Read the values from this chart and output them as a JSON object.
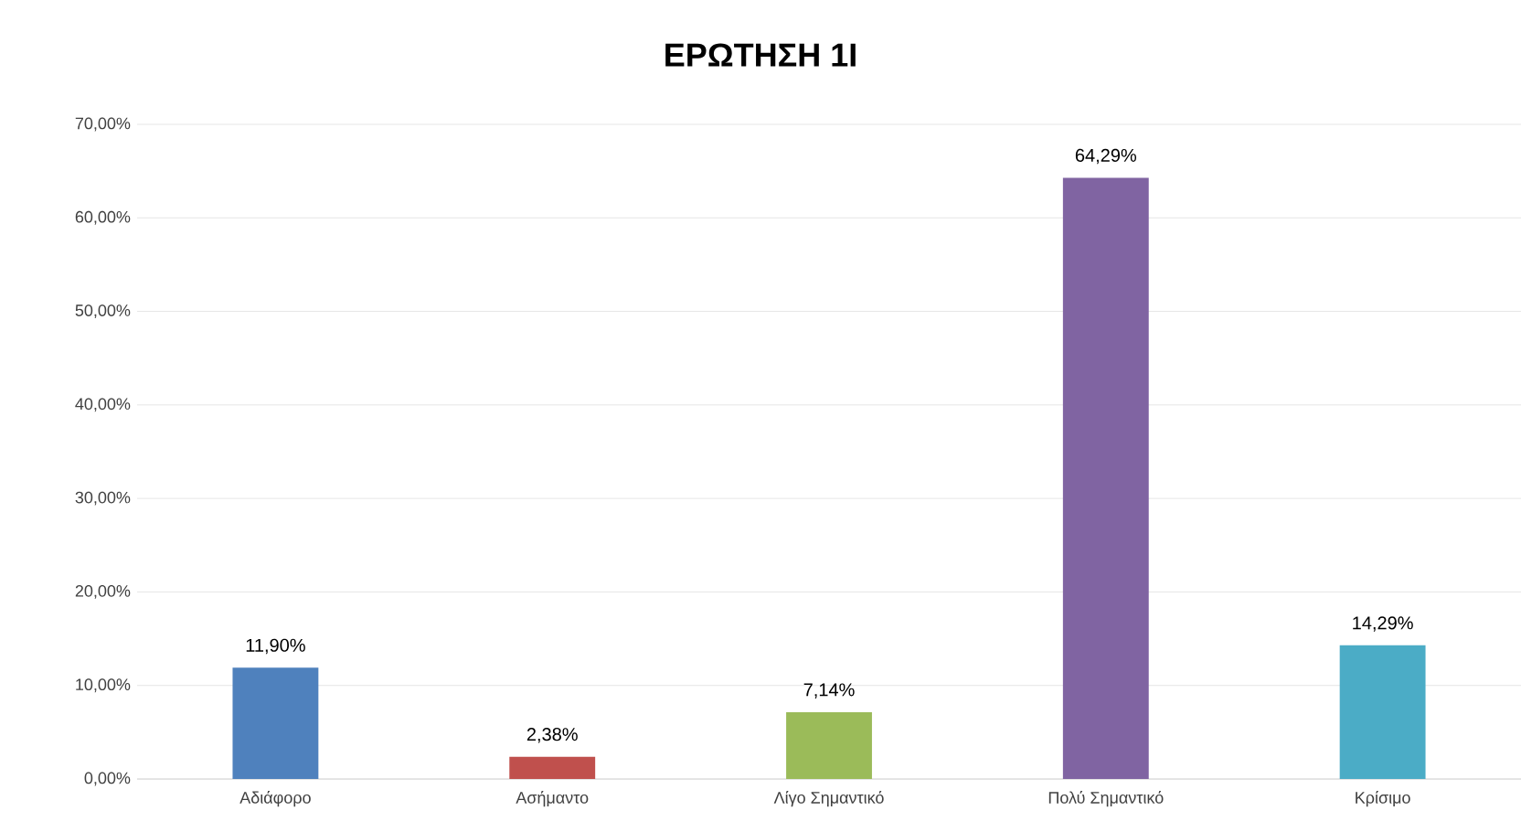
{
  "chart_data": {
    "type": "bar",
    "title": "ΕΡΩΤΗΣΗ 1Ι",
    "categories": [
      "Αδιάφορο",
      "Ασήμαντο",
      "Λίγο Σημαντικό",
      "Πολύ Σημαντικό",
      "Κρίσιμο"
    ],
    "values": [
      11.9,
      2.38,
      7.14,
      64.29,
      14.29
    ],
    "value_labels": [
      "11,90%",
      "2,38%",
      "7,14%",
      "64,29%",
      "14,29%"
    ],
    "colors": [
      "#4f81bd",
      "#c0504d",
      "#9bbb59",
      "#8064a2",
      "#4bacc6"
    ],
    "ylim": [
      0,
      70
    ],
    "yticks": [
      {
        "value": 0,
        "label": "0,00%"
      },
      {
        "value": 10,
        "label": "10,00%"
      },
      {
        "value": 20,
        "label": "20,00%"
      },
      {
        "value": 30,
        "label": "30,00%"
      },
      {
        "value": 40,
        "label": "40,00%"
      },
      {
        "value": 50,
        "label": "50,00%"
      },
      {
        "value": 60,
        "label": "60,00%"
      },
      {
        "value": 70,
        "label": "70,00%"
      }
    ],
    "grid": "y"
  }
}
